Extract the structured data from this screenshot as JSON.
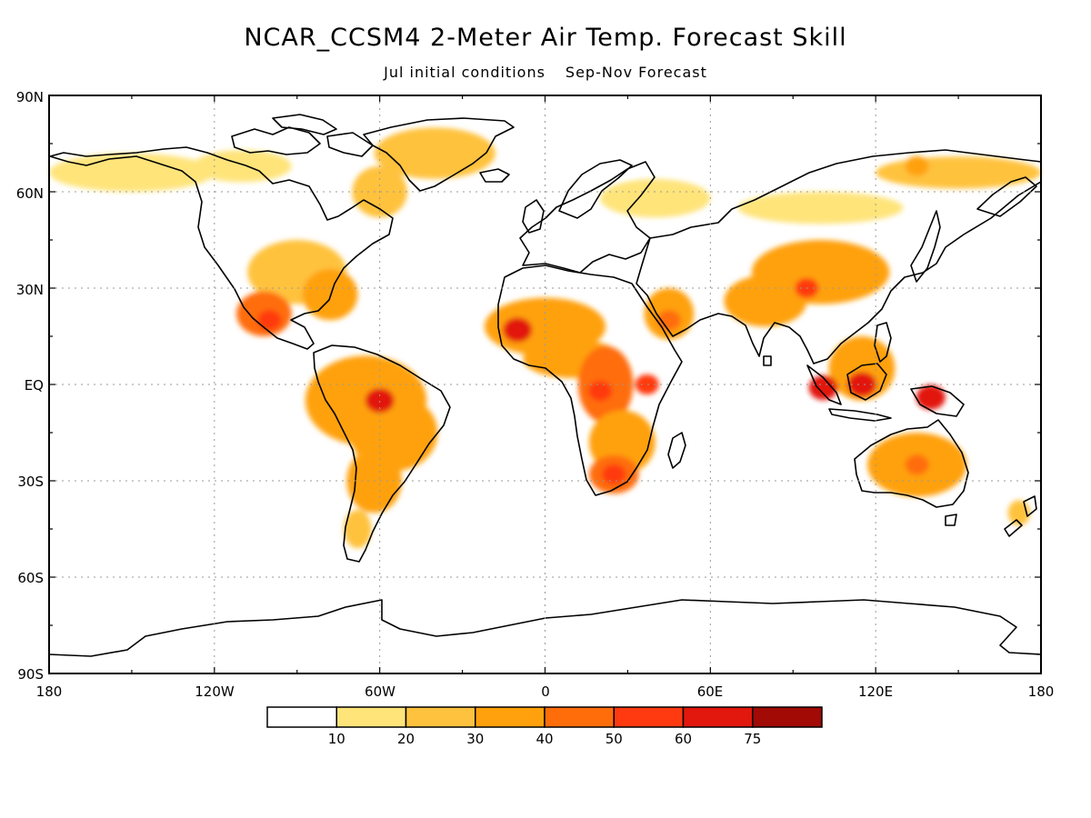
{
  "title": "NCAR_CCSM4 2-Meter Air Temp. Forecast Skill",
  "subtitle": {
    "initial": "Jul initial conditions",
    "forecast": "Sep-Nov Forecast"
  },
  "axes": {
    "lat_labels": [
      "90N",
      "60N",
      "30N",
      "EQ",
      "30S",
      "60S",
      "90S"
    ],
    "lon_labels": [
      "180",
      "120W",
      "60W",
      "0",
      "60E",
      "120E",
      "180"
    ]
  },
  "colorbar": {
    "colors": [
      "#ffffff",
      "#ffe47a",
      "#ffc23e",
      "#ffa10c",
      "#ff6d0a",
      "#ff3a11",
      "#e2170d",
      "#a10a05"
    ],
    "labels": [
      "10",
      "20",
      "30",
      "40",
      "50",
      "60",
      "75"
    ]
  },
  "chart_data": {
    "type": "heatmap",
    "variable": "2-Meter Air Temp. Forecast Skill",
    "model": "NCAR_CCSM4",
    "lat_range": [
      -90,
      90
    ],
    "lon_range": [
      -180,
      180
    ],
    "grid": true,
    "levels": [
      10,
      20,
      30,
      40,
      50,
      60,
      75
    ],
    "high_skill_regions": [
      {
        "region": "Amazon basin",
        "lon": -60,
        "lat": -5,
        "level": 60
      },
      {
        "region": "West Sahel",
        "lon": -10,
        "lat": 17,
        "level": 60
      },
      {
        "region": "Central Africa",
        "lon": 20,
        "lat": -2,
        "level": 50
      },
      {
        "region": "East Africa",
        "lon": 37,
        "lat": 0,
        "level": 50
      },
      {
        "region": "Southern Africa",
        "lon": 25,
        "lat": -28,
        "level": 50
      },
      {
        "region": "Borneo",
        "lon": 115,
        "lat": 0,
        "level": 60
      },
      {
        "region": "Sumatra",
        "lon": 101,
        "lat": -1,
        "level": 60
      },
      {
        "region": "New Guinea",
        "lon": 140,
        "lat": -4,
        "level": 60
      },
      {
        "region": "Tibet / South China",
        "lon": 95,
        "lat": 30,
        "level": 50
      },
      {
        "region": "Mexico",
        "lon": -100,
        "lat": 20,
        "level": 50
      },
      {
        "region": "Arabian Peninsula",
        "lon": 45,
        "lat": 20,
        "level": 40
      },
      {
        "region": "Australia",
        "lon": 135,
        "lat": -25,
        "level": 40
      },
      {
        "region": "Eastern Siberia",
        "lon": 135,
        "lat": 68,
        "level": 30
      }
    ]
  }
}
